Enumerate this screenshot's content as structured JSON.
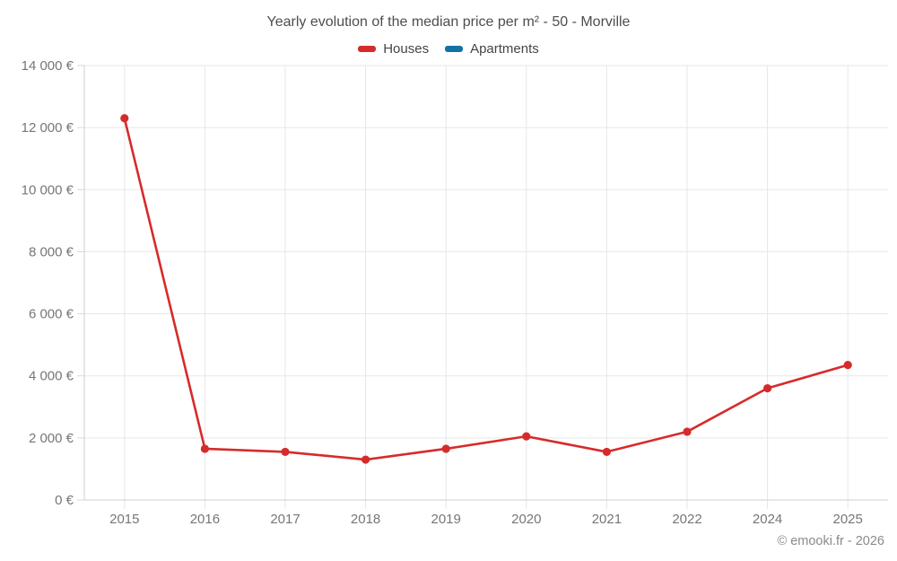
{
  "copyright": "© emooki.fr - 2026",
  "chart_data": {
    "type": "line",
    "title": "Yearly evolution of the median price per m² - 50 - Morville",
    "categories": [
      "2015",
      "2016",
      "2017",
      "2018",
      "2019",
      "2020",
      "2021",
      "2022",
      "2024",
      "2025"
    ],
    "series": [
      {
        "name": "Houses",
        "color": "#d62b2b",
        "values": [
          12300,
          1650,
          1550,
          1300,
          1650,
          2050,
          1550,
          2200,
          3600,
          4350
        ]
      },
      {
        "name": "Apartments",
        "color": "#1272a5",
        "values": []
      }
    ],
    "xlabel": "",
    "ylabel": "",
    "ylim": [
      0,
      14000
    ],
    "y_ticks": [
      {
        "value": 0,
        "label": "0 €"
      },
      {
        "value": 2000,
        "label": "2 000 €"
      },
      {
        "value": 4000,
        "label": "4 000 €"
      },
      {
        "value": 6000,
        "label": "6 000 €"
      },
      {
        "value": 8000,
        "label": "8 000 €"
      },
      {
        "value": 10000,
        "label": "10 000 €"
      },
      {
        "value": 12000,
        "label": "12 000 €"
      },
      {
        "value": 14000,
        "label": "14 000 €"
      }
    ],
    "grid": true,
    "legend_position": "top",
    "currency": "€"
  }
}
